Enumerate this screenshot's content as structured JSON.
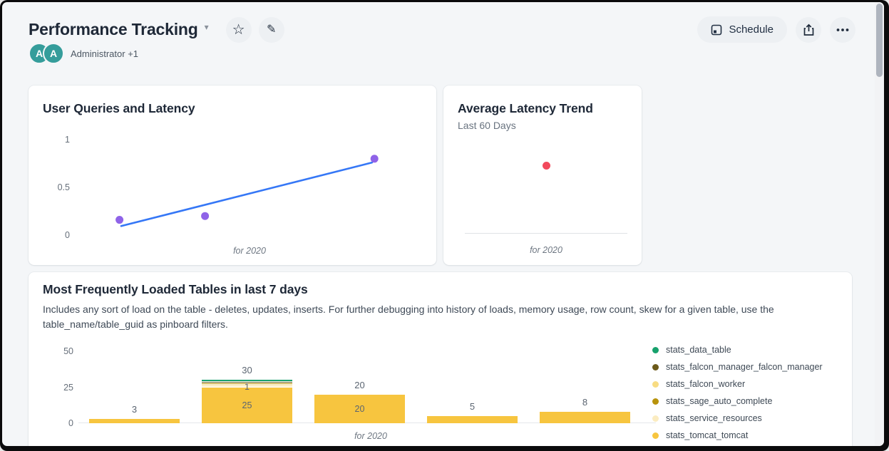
{
  "page": {
    "title": "Performance Tracking",
    "owners": {
      "avatar_initials": [
        "A",
        "A"
      ],
      "label": "Administrator",
      "more": "+1"
    },
    "toolbar": {
      "schedule": "Schedule"
    }
  },
  "colors": {
    "avatar_teal": "#359d9b",
    "scatter_point_purple": "#8f63e8",
    "trend_line_blue": "#3577f6",
    "latency_point_red": "#f2495c",
    "bar_amber": "#f7c53f"
  },
  "chart_data": [
    {
      "id": "user-queries-and-latency",
      "type": "scatter",
      "title": "User Queries and Latency",
      "xlabel": "for 2020",
      "ytick_labels": [
        "1",
        "0.5",
        "0"
      ],
      "ytick_values": [
        1,
        0.5,
        0
      ],
      "ylim": [
        0,
        1
      ],
      "points": [
        {
          "x": 0.12,
          "y": 0.16
        },
        {
          "x": 0.37,
          "y": 0.2
        },
        {
          "x": 0.865,
          "y": 0.8
        }
      ],
      "trendline": {
        "x1": 0.125,
        "y1": 0.095,
        "x2": 0.858,
        "y2": 0.76
      },
      "point_color": "#8f63e8",
      "line_color": "#3577f6"
    },
    {
      "id": "average-latency-trend",
      "type": "scatter",
      "title": "Average Latency Trend",
      "subtitle": "Last 60 Days",
      "xlabel": "for 2020",
      "points": [
        {
          "x": 0.5,
          "y": 0.64
        }
      ],
      "point_color": "#f2495c"
    },
    {
      "id": "most-frequently-loaded-tables",
      "type": "stacked-bar",
      "title": "Most Frequently Loaded Tables in last 7 days",
      "description": "Includes any sort of load on the table - deletes, updates, inserts. For further debugging into history of loads, memory usage, row count, skew for a given table, use the table_name/table_guid as pinboard filters.",
      "xlabel": "for 2020",
      "ytick_labels": [
        "50",
        "25",
        "0"
      ],
      "ytick_values": [
        50,
        25,
        0
      ],
      "ylim": [
        0,
        52
      ],
      "categories": [
        "",
        "",
        "",
        "",
        ""
      ],
      "series_stack_top_to_bottom": [
        {
          "name": "stats_data_table",
          "color": "#17a16c",
          "values": [
            0,
            1,
            0,
            0,
            0
          ]
        },
        {
          "name": "stats_falcon_manager_falcon_manager",
          "color": "#6c5a1a",
          "values": [
            0,
            1,
            0,
            0,
            0
          ]
        },
        {
          "name": "stats_sage_auto_complete",
          "color": "#b8930c",
          "values": [
            0,
            1,
            0,
            0,
            0
          ]
        },
        {
          "name": "stats_falcon_worker",
          "color": "#f8dc82",
          "values": [
            0,
            1,
            0,
            0,
            0
          ]
        },
        {
          "name": "stats_service_resources",
          "color": "#fbecc1",
          "values": [
            0,
            1,
            0,
            0,
            0
          ]
        },
        {
          "name": "stats_tomcat_tomcat",
          "color": "#f7c53f",
          "values": [
            3,
            25,
            20,
            5,
            8
          ]
        }
      ],
      "bar_totals": [
        "3",
        "30",
        "20",
        "5",
        "8"
      ],
      "inner_labels": [
        {
          "bar": 1,
          "series": "stats_service_resources",
          "text": "1"
        },
        {
          "bar": 1,
          "series": "stats_tomcat_tomcat",
          "text": "25"
        },
        {
          "bar": 2,
          "series": "stats_tomcat_tomcat",
          "text": "20"
        }
      ],
      "legend": [
        {
          "name": "stats_data_table",
          "color": "#17a16c"
        },
        {
          "name": "stats_falcon_manager_falcon_manager",
          "color": "#6c5a1a"
        },
        {
          "name": "stats_falcon_worker",
          "color": "#f8dc82"
        },
        {
          "name": "stats_sage_auto_complete",
          "color": "#b8930c"
        },
        {
          "name": "stats_service_resources",
          "color": "#fbecc1"
        },
        {
          "name": "stats_tomcat_tomcat",
          "color": "#f7c53f"
        }
      ],
      "legend_position": "right"
    }
  ]
}
